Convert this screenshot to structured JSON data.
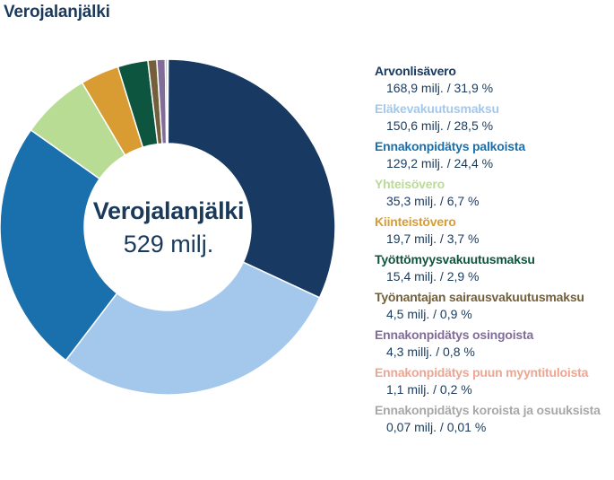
{
  "header": {
    "title": "Verojalanjälki"
  },
  "center": {
    "title": "Verojalanjälki",
    "value": "529 milj."
  },
  "chart_data": {
    "type": "pie",
    "donut": true,
    "title": "Verojalanjälki",
    "total": "529 milj.",
    "legend_position": "right",
    "series": [
      {
        "name": "Arvonlisävero",
        "value": 168.9,
        "percent": 31.9,
        "label": "168,9 milj. / 31,9 %",
        "color": "#183a62"
      },
      {
        "name": "Eläkevakuutusmaksu",
        "value": 150.6,
        "percent": 28.5,
        "label": "150,6 milj. / 28,5 %",
        "color": "#a4c8ec"
      },
      {
        "name": "Ennakonpidätys palkoista",
        "value": 129.2,
        "percent": 24.4,
        "label": "129,2 milj. / 24,4 %",
        "color": "#1a70ac"
      },
      {
        "name": "Yhteisövero",
        "value": 35.3,
        "percent": 6.7,
        "label": "35,3 milj. / 6,7 %",
        "color": "#b9dc95"
      },
      {
        "name": "Kiinteistövero",
        "value": 19.7,
        "percent": 3.7,
        "label": "19,7 milj. / 3,7 %",
        "color": "#d99c33"
      },
      {
        "name": "Työttömyysvakuutusmaksu",
        "value": 15.4,
        "percent": 2.9,
        "label": "15,4 milj. / 2,9 %",
        "color": "#0e5540"
      },
      {
        "name": "Työnantajan sairausvakuutusmaksu",
        "value": 4.5,
        "percent": 0.9,
        "label": "4,5 milj. / 0,9  %",
        "color": "#73603a"
      },
      {
        "name": "Ennakonpidätys osingoista",
        "value": 4.3,
        "percent": 0.8,
        "label": "4,3 millj. / 0,8 %",
        "color": "#826c9a"
      },
      {
        "name": "Ennakonpidätys puun myyntituloista",
        "value": 1.1,
        "percent": 0.2,
        "label": "1,1 milj. / 0,2 %",
        "color": "#eea592"
      },
      {
        "name": "Ennakonpidätys koroista ja osuuksista",
        "value": 0.07,
        "percent": 0.01,
        "label": "0,07 milj. / 0,01 %",
        "color": "#a8a8a8"
      }
    ]
  }
}
